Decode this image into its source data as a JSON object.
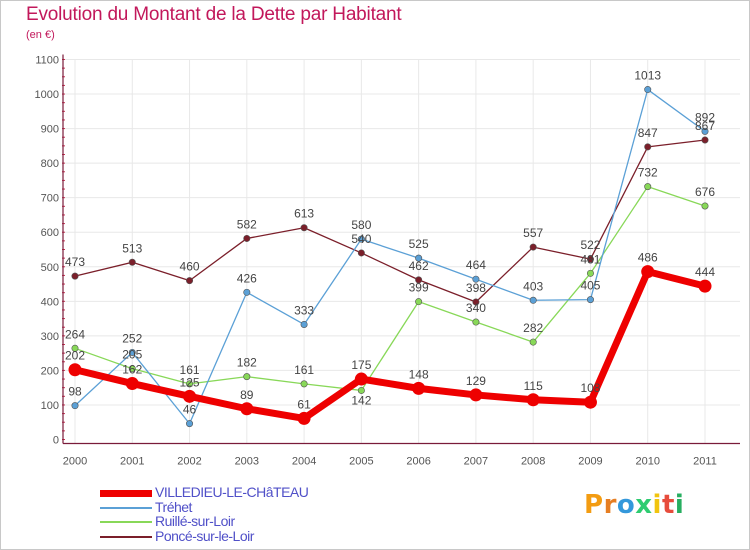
{
  "title": "Evolution du Montant de la Dette par Habitant",
  "unit_label": "(en €)",
  "logo_text": "Proxiti",
  "colors": {
    "title": "#c2185b",
    "axis": "#7a1b3a",
    "grid": "#e8e8e8",
    "legend_text": "#5050c8"
  },
  "chart_data": {
    "type": "line",
    "title": "Evolution du Montant de la Dette par Habitant",
    "ylabel": "(en €)",
    "xlabel": "",
    "ylim": [
      0,
      1100
    ],
    "y_ticks": [
      0,
      100,
      200,
      300,
      400,
      500,
      600,
      700,
      800,
      900,
      1000,
      1100
    ],
    "x": [
      "2000",
      "2001",
      "2002",
      "2003",
      "2004",
      "2005",
      "2006",
      "2007",
      "2008",
      "2009",
      "2010",
      "2011"
    ],
    "grid": true,
    "legend_position": "bottom-left",
    "series": [
      {
        "name": "Poncé-sur-le-Loir",
        "color": "#7b1f2a",
        "width": 1.3,
        "values": [
          473,
          513,
          460,
          582,
          613,
          540,
          462,
          398,
          557,
          522,
          847,
          867
        ]
      },
      {
        "name": "Ruillé-sur-Loir",
        "color": "#88d858",
        "width": 1.3,
        "values": [
          264,
          205,
          161,
          182,
          161,
          142,
          399,
          340,
          282,
          481,
          732,
          676
        ]
      },
      {
        "name": "Tréhet",
        "color": "#5ba0d6",
        "width": 1.3,
        "values": [
          98,
          252,
          46,
          426,
          333,
          580,
          525,
          464,
          403,
          405,
          1013,
          892
        ]
      },
      {
        "name": "VILLEDIEU-LE-CHâTEAU",
        "color": "#ee0000",
        "width": 7,
        "values": [
          202,
          162,
          125,
          89,
          61,
          175,
          148,
          129,
          115,
          108,
          486,
          444
        ]
      }
    ],
    "point_labels": [
      {
        "series": "Poncé-sur-le-Loir",
        "labels": [
          "473",
          "513",
          "460",
          "582",
          "613",
          "540",
          "462",
          "398",
          "557",
          "522",
          "847",
          "867"
        ]
      },
      {
        "series": "Ruillé-sur-Loir",
        "labels": [
          "264",
          "205",
          "161",
          "182",
          "161",
          "142",
          "399",
          "340",
          "282",
          "481",
          "732",
          "676"
        ]
      },
      {
        "series": "Tréhet",
        "labels": [
          "98",
          "252",
          "46",
          "426",
          "333",
          "580",
          "525",
          "464",
          "403",
          "405",
          "1013",
          "892"
        ]
      },
      {
        "series": "VILLEDIEU-LE-CHâTEAU",
        "labels": [
          "202",
          "162",
          "125",
          "89",
          "61",
          "175",
          "148",
          "129",
          "115",
          "108",
          "486",
          "444"
        ]
      }
    ]
  },
  "legend": [
    {
      "label": "VILLEDIEU-LE-CHâTEAU",
      "color": "#ee0000",
      "thickness": "thick"
    },
    {
      "label": "Tréhet",
      "color": "#5ba0d6",
      "thickness": "thin"
    },
    {
      "label": "Ruillé-sur-Loir",
      "color": "#88d858",
      "thickness": "thin"
    },
    {
      "label": "Poncé-sur-le-Loir",
      "color": "#7b1f2a",
      "thickness": "thin"
    }
  ]
}
